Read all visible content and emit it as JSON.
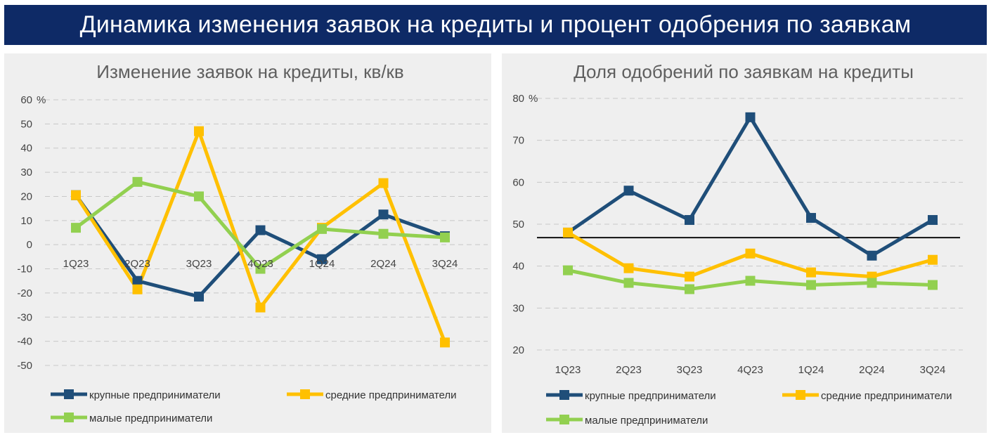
{
  "banner": {
    "title": "Динамика изменения заявок на кредиты и процент одобрения по заявкам"
  },
  "chart_data": [
    {
      "type": "line",
      "title": "Изменение заявок на кредиты, кв/кв",
      "unit": "%",
      "categories": [
        "1Q23",
        "2Q23",
        "3Q23",
        "4Q23",
        "1Q24",
        "2Q24",
        "3Q24"
      ],
      "yticks": [
        60,
        50,
        40,
        30,
        20,
        10,
        0,
        -10,
        -20,
        -30,
        -40,
        -50
      ],
      "ylim": [
        -50,
        60
      ],
      "grid": true,
      "legend_position": "bottom",
      "series": [
        {
          "name": "крупные предприниматели",
          "color": "#1f4e79",
          "values": [
            20.5,
            -15,
            -21.5,
            6,
            -6,
            12.5,
            3.5
          ]
        },
        {
          "name": "средние предприниматели",
          "color": "#ffc000",
          "values": [
            20.5,
            -18.5,
            47,
            -26,
            7,
            25.5,
            -40.5
          ]
        },
        {
          "name": "малые предприниматели",
          "color": "#92d050",
          "values": [
            7,
            26,
            20,
            -10,
            6.5,
            4.5,
            3
          ]
        }
      ]
    },
    {
      "type": "line",
      "title": "Доля одобрений по заявкам на кредиты",
      "unit": "%",
      "categories": [
        "1Q23",
        "2Q23",
        "3Q23",
        "4Q23",
        "1Q24",
        "2Q24",
        "3Q24"
      ],
      "yticks": [
        80,
        70,
        60,
        50,
        40,
        30,
        20
      ],
      "ylim": [
        20,
        80
      ],
      "grid": true,
      "reference_line": 46.8,
      "legend_position": "bottom",
      "series": [
        {
          "name": "крупные предприниматели",
          "color": "#1f4e79",
          "values": [
            48,
            58,
            51,
            75.5,
            51.5,
            42.5,
            51
          ]
        },
        {
          "name": "средние предприниматели",
          "color": "#ffc000",
          "values": [
            48,
            39.5,
            37.5,
            43,
            38.5,
            37.5,
            41.5
          ]
        },
        {
          "name": "малые предприниматели",
          "color": "#92d050",
          "values": [
            39,
            36,
            34.5,
            36.5,
            35.5,
            36,
            35.5
          ]
        }
      ]
    }
  ]
}
